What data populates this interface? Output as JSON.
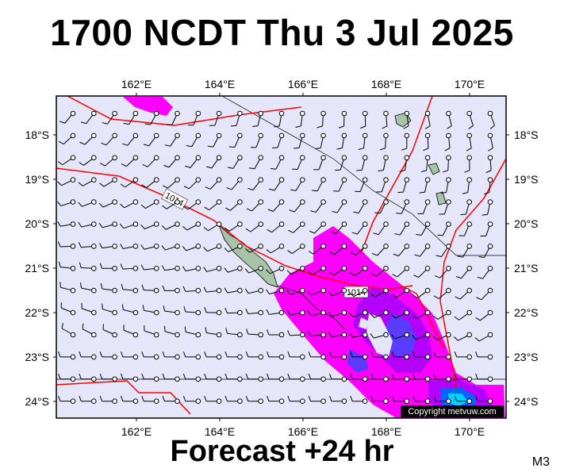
{
  "title": "1700 NCDT Thu 3 Jul 2025",
  "subtitle": "Forecast +24 hr",
  "code": "M3",
  "copyright": "Copyright metvuw.com",
  "map": {
    "lon_labels": [
      "162°E",
      "164°E",
      "166°E",
      "168°E",
      "170°E"
    ],
    "lat_labels": [
      "18°S",
      "19°S",
      "20°S",
      "21°S",
      "22°S",
      "23°S",
      "24°S"
    ],
    "isobar_labels": [
      "1014",
      "1014"
    ]
  },
  "colors": {
    "background": "#e6e6fa",
    "isobar": "#ff0000",
    "rain_light": "#ff00ff",
    "rain_med": "#b400ff",
    "rain_heavy": "#5a3cff",
    "land": "#a8c4a8"
  }
}
